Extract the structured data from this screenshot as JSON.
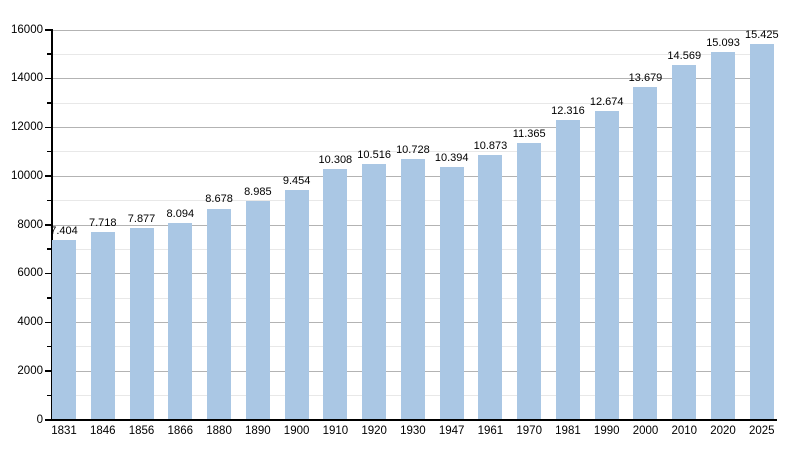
{
  "chart_data": {
    "type": "bar",
    "title": "",
    "xlabel": "",
    "ylabel": "",
    "categories": [
      "1831",
      "1846",
      "1856",
      "1866",
      "1880",
      "1890",
      "1900",
      "1910",
      "1920",
      "1930",
      "1947",
      "1961",
      "1970",
      "1981",
      "1990",
      "2000",
      "2010",
      "2020",
      "2025"
    ],
    "values": [
      7404,
      7718,
      7877,
      8094,
      8678,
      8985,
      9454,
      10308,
      10516,
      10728,
      10394,
      10873,
      11365,
      12316,
      12674,
      13679,
      14569,
      15093,
      15425
    ],
    "value_labels": [
      "7.404",
      "7.718",
      "7.877",
      "8.094",
      "8.678",
      "8.985",
      "9.454",
      "10.308",
      "10.516",
      "10.728",
      "10.394",
      "10.873",
      "11.365",
      "12.316",
      "12.674",
      "13.679",
      "14.569",
      "15.093",
      "15.425"
    ],
    "ylim": [
      0,
      16000
    ],
    "y_major_step": 2000,
    "y_minor_step": 1000,
    "y_major_tick_labels": [
      "0",
      "2000",
      "4000",
      "6000",
      "8000",
      "10000",
      "12000",
      "14000",
      "16000"
    ],
    "grid": "horizontal",
    "legend": "none",
    "colors": {
      "bar_fill": "#aac7e4",
      "axis": "#000000",
      "major_grid": "#b3b3b3",
      "minor_grid": "#e8e8e8",
      "text": "#000000",
      "background": "#ffffff"
    }
  }
}
